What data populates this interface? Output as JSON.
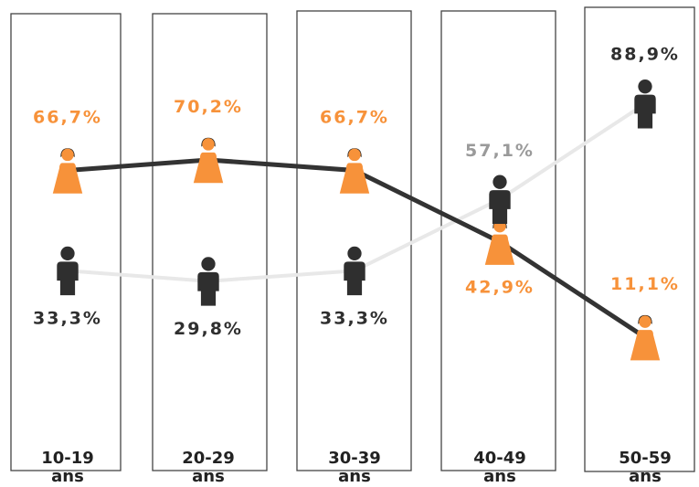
{
  "colors": {
    "female": "#f7923a",
    "male": "#2f2f2f",
    "male_line": "#e8e8e8",
    "female_line": "#333333",
    "border": "#444444"
  },
  "icons": {
    "female": "woman-icon",
    "male": "man-icon"
  },
  "chart_data": {
    "type": "line",
    "categories": [
      "10-19",
      "20-29",
      "30-39",
      "40-49",
      "50-59"
    ],
    "category_unit": "ans",
    "ylim": [
      0,
      100
    ],
    "series": [
      {
        "key": "female",
        "values": [
          66.7,
          70.2,
          66.7,
          42.9,
          11.1
        ],
        "labels": [
          "66,7%",
          "70,2%",
          "66,7%",
          "42,9%",
          "11,1%"
        ]
      },
      {
        "key": "male",
        "values": [
          33.3,
          29.8,
          33.3,
          57.1,
          88.9
        ],
        "labels": [
          "33,3%",
          "29,8%",
          "33,3%",
          "57,1%",
          "88,9%"
        ]
      }
    ]
  }
}
